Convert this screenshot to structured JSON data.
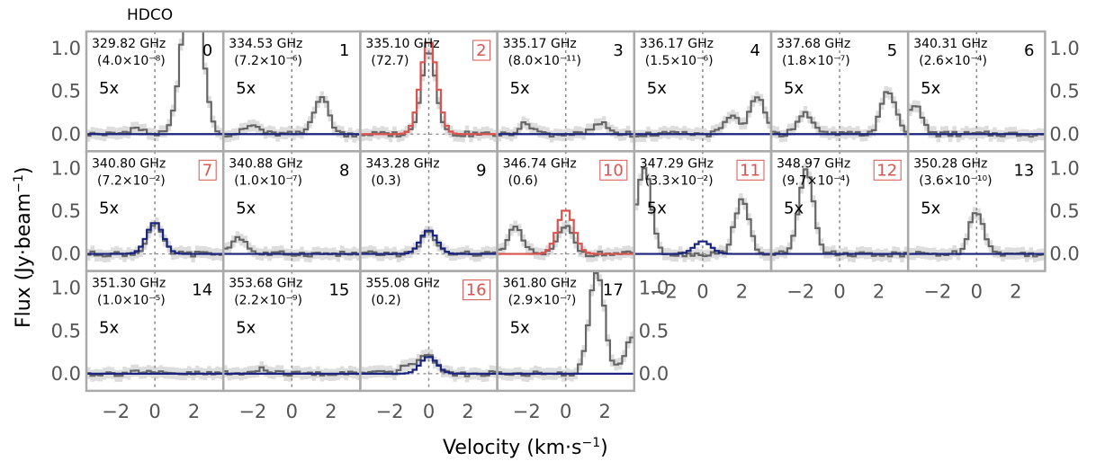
{
  "chart_data": {
    "type": "line",
    "title": "HDCO",
    "xlabel": "Velocity (km·s⁻¹)",
    "ylabel": "Flux (Jy·beam⁻¹)",
    "xlim": [
      -3.5,
      3.5
    ],
    "ylim": [
      -0.2,
      1.2
    ],
    "xticks": [
      -2,
      0,
      2
    ],
    "xtick_labels": [
      "−2",
      "0",
      "2"
    ],
    "yticks": [
      0.0,
      0.5,
      1.0
    ],
    "ytick_labels": [
      "0.0",
      "0.5",
      "1.0"
    ],
    "colors": {
      "observed": "#666666",
      "uncertainty": "#dddddd",
      "model": "#1a237e",
      "model_highlight": "#d9534f",
      "frame": "#aaaaaa"
    },
    "panels": [
      {
        "index": "0",
        "freq": "329.82 GHz",
        "ratio": "(4.0×10⁻⁸)",
        "scale": "5x",
        "highlight": false,
        "model_peak": 0.0,
        "obs_peak_velocities": [
          -1.0,
          1.6,
          2.2
        ],
        "obs_peak_values": [
          0.07,
          1.2,
          1.2
        ]
      },
      {
        "index": "1",
        "freq": "334.53 GHz",
        "ratio": "(7.2×10⁻⁶)",
        "scale": "5x",
        "highlight": false,
        "model_peak": 0.0,
        "obs_peak_velocities": [
          -2.0,
          1.5
        ],
        "obs_peak_values": [
          0.1,
          0.44
        ]
      },
      {
        "index": "2",
        "freq": "335.10 GHz",
        "ratio": "(72.7)",
        "scale": "",
        "highlight": true,
        "model_peak": 1.1,
        "obs_peak_velocities": [
          0.0
        ],
        "obs_peak_values": [
          0.98
        ]
      },
      {
        "index": "3",
        "freq": "335.17 GHz",
        "ratio": "(8.0×10⁻¹¹)",
        "scale": "5x",
        "highlight": false,
        "model_peak": 0.0,
        "obs_peak_velocities": [
          -2.0,
          1.8
        ],
        "obs_peak_values": [
          0.12,
          0.12
        ]
      },
      {
        "index": "4",
        "freq": "336.17 GHz",
        "ratio": "(1.5×10⁻⁶)",
        "scale": "5x",
        "highlight": false,
        "model_peak": 0.0,
        "obs_peak_velocities": [
          2.8,
          1.5
        ],
        "obs_peak_values": [
          0.42,
          0.2
        ]
      },
      {
        "index": "5",
        "freq": "337.68 GHz",
        "ratio": "(1.8×10⁻⁷)",
        "scale": "5x",
        "highlight": false,
        "model_peak": 0.0,
        "obs_peak_velocities": [
          -1.8,
          2.5
        ],
        "obs_peak_values": [
          0.25,
          0.5
        ]
      },
      {
        "index": "6",
        "freq": "340.31 GHz",
        "ratio": "(2.6×10⁻⁴)",
        "scale": "5x",
        "highlight": false,
        "model_peak": 0.0,
        "obs_peak_velocities": [
          -3.2
        ],
        "obs_peak_values": [
          0.35
        ]
      },
      {
        "index": "7",
        "freq": "340.80 GHz",
        "ratio": "(7.2×10⁻²)",
        "scale": "5x",
        "highlight": true,
        "model_peak": 0.37,
        "obs_peak_velocities": [
          0.0
        ],
        "obs_peak_values": [
          0.34
        ]
      },
      {
        "index": "8",
        "freq": "340.88 GHz",
        "ratio": "(1.0×10⁻⁷)",
        "scale": "5x",
        "highlight": false,
        "model_peak": 0.0,
        "obs_peak_velocities": [
          -2.7
        ],
        "obs_peak_values": [
          0.2
        ]
      },
      {
        "index": "9",
        "freq": "343.28 GHz",
        "ratio": "(0.3)",
        "scale": "",
        "highlight": false,
        "model_peak": 0.28,
        "obs_peak_velocities": [
          0.0
        ],
        "obs_peak_values": [
          0.25
        ]
      },
      {
        "index": "10",
        "freq": "346.74 GHz",
        "ratio": "(0.6)",
        "scale": "",
        "highlight": true,
        "model_peak": 0.52,
        "obs_peak_velocities": [
          0.0,
          -2.6
        ],
        "obs_peak_values": [
          0.32,
          0.3
        ]
      },
      {
        "index": "11",
        "freq": "347.29 GHz",
        "ratio": "(3.3×10⁻²)",
        "scale": "5x",
        "highlight": true,
        "model_peak": 0.15,
        "obs_peak_velocities": [
          -3.0,
          2.0
        ],
        "obs_peak_values": [
          1.0,
          0.62
        ]
      },
      {
        "index": "12",
        "freq": "348.97 GHz",
        "ratio": "(9.7×10⁻⁴)",
        "scale": "5x",
        "highlight": true,
        "model_peak": 0.0,
        "obs_peak_velocities": [
          -1.7
        ],
        "obs_peak_values": [
          1.0
        ]
      },
      {
        "index": "13",
        "freq": "350.28 GHz",
        "ratio": "(3.6×10⁻¹⁰)",
        "scale": "5x",
        "highlight": false,
        "model_peak": 0.0,
        "obs_peak_velocities": [
          0.0
        ],
        "obs_peak_values": [
          0.5
        ]
      },
      {
        "index": "14",
        "freq": "351.30 GHz",
        "ratio": "(1.0×10⁻⁵)",
        "scale": "5x",
        "highlight": false,
        "model_peak": 0.0,
        "obs_peak_velocities": [
          -1.0
        ],
        "obs_peak_values": [
          0.03
        ]
      },
      {
        "index": "15",
        "freq": "353.68 GHz",
        "ratio": "(2.2×10⁻⁹)",
        "scale": "5x",
        "highlight": false,
        "model_peak": 0.0,
        "obs_peak_velocities": [
          -1.5
        ],
        "obs_peak_values": [
          0.05
        ]
      },
      {
        "index": "16",
        "freq": "355.08 GHz",
        "ratio": "(0.2)",
        "scale": "",
        "highlight": true,
        "model_peak": 0.2,
        "obs_peak_velocities": [
          0.0,
          -1.0
        ],
        "obs_peak_values": [
          0.22,
          0.1
        ]
      },
      {
        "index": "17",
        "freq": "361.80 GHz",
        "ratio": "(2.9×10⁻⁷)",
        "scale": "5x",
        "highlight": false,
        "model_peak": 0.0,
        "obs_peak_velocities": [
          1.6,
          3.4
        ],
        "obs_peak_values": [
          1.2,
          0.4
        ]
      }
    ]
  }
}
